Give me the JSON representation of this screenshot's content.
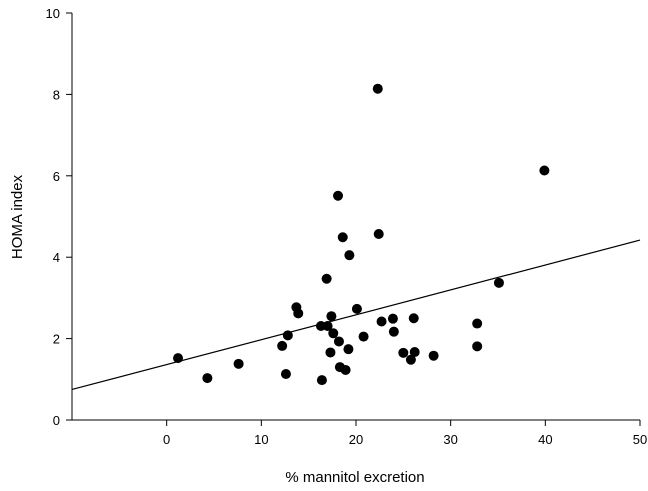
{
  "chart_data": {
    "type": "scatter",
    "title": "",
    "xlabel": "% mannitol excretion",
    "ylabel": "HOMA index",
    "xlim": [
      -10,
      50
    ],
    "ylim": [
      0,
      10
    ],
    "xticks": [
      0,
      10,
      20,
      30,
      40,
      50
    ],
    "yticks": [
      0,
      2,
      4,
      6,
      8,
      10
    ],
    "grid": false,
    "legend": "none",
    "marker_color": "#000000",
    "points": [
      {
        "x": 1.2,
        "y": 1.52
      },
      {
        "x": 4.3,
        "y": 1.03
      },
      {
        "x": 7.6,
        "y": 1.38
      },
      {
        "x": 12.2,
        "y": 1.82
      },
      {
        "x": 12.6,
        "y": 1.13
      },
      {
        "x": 12.8,
        "y": 2.08
      },
      {
        "x": 13.7,
        "y": 2.77
      },
      {
        "x": 13.9,
        "y": 2.62
      },
      {
        "x": 16.3,
        "y": 2.31
      },
      {
        "x": 16.4,
        "y": 0.98
      },
      {
        "x": 16.9,
        "y": 3.47
      },
      {
        "x": 17.0,
        "y": 2.31
      },
      {
        "x": 17.3,
        "y": 1.66
      },
      {
        "x": 17.4,
        "y": 2.55
      },
      {
        "x": 17.6,
        "y": 2.13
      },
      {
        "x": 18.1,
        "y": 5.51
      },
      {
        "x": 18.2,
        "y": 1.93
      },
      {
        "x": 18.3,
        "y": 1.3
      },
      {
        "x": 18.6,
        "y": 4.49
      },
      {
        "x": 18.9,
        "y": 1.23
      },
      {
        "x": 19.2,
        "y": 1.74
      },
      {
        "x": 19.3,
        "y": 4.05
      },
      {
        "x": 20.1,
        "y": 2.73
      },
      {
        "x": 20.8,
        "y": 2.05
      },
      {
        "x": 22.3,
        "y": 8.14
      },
      {
        "x": 22.4,
        "y": 4.57
      },
      {
        "x": 22.7,
        "y": 2.42
      },
      {
        "x": 23.9,
        "y": 2.49
      },
      {
        "x": 24.0,
        "y": 2.17
      },
      {
        "x": 25.0,
        "y": 1.65
      },
      {
        "x": 25.8,
        "y": 1.48
      },
      {
        "x": 26.1,
        "y": 2.5
      },
      {
        "x": 26.2,
        "y": 1.67
      },
      {
        "x": 28.2,
        "y": 1.58
      },
      {
        "x": 32.8,
        "y": 2.37
      },
      {
        "x": 32.8,
        "y": 1.81
      },
      {
        "x": 35.1,
        "y": 3.37
      },
      {
        "x": 39.9,
        "y": 6.13
      }
    ],
    "regression_line": {
      "x": [
        -10,
        50
      ],
      "y": [
        0.75,
        4.42
      ]
    }
  }
}
